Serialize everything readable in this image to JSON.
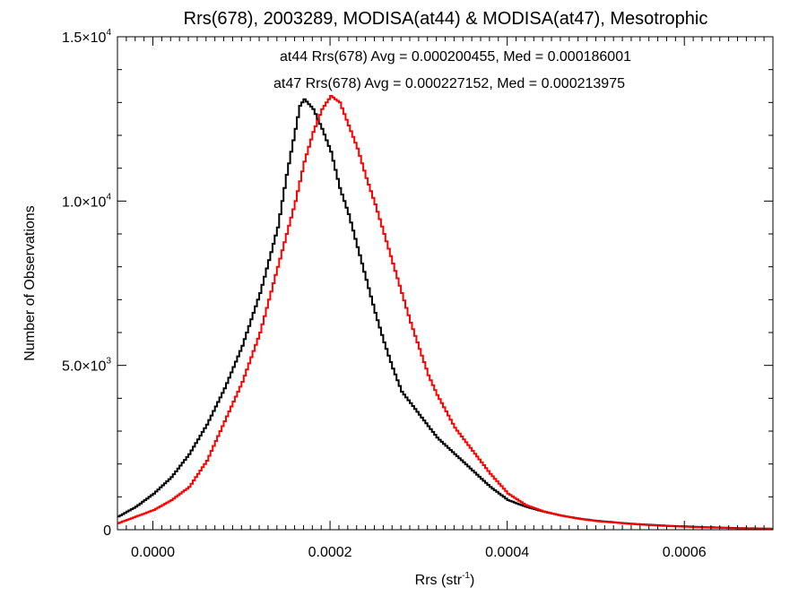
{
  "chart_data": {
    "type": "line",
    "title": "Rrs(678), 2003289, MODISA(at44) & MODISA(at47), Mesotrophic",
    "xlabel": "Rrs (str",
    "xlabel_sup": "-1",
    "xlabel_suffix": ")",
    "ylabel": "Number of Observations",
    "xlim": [
      -4e-05,
      0.0007
    ],
    "ylim": [
      0,
      15000
    ],
    "x_ticks": [
      {
        "value": 0.0,
        "label": "0.0000"
      },
      {
        "value": 0.0002,
        "label": "0.0002"
      },
      {
        "value": 0.0004,
        "label": "0.0004"
      },
      {
        "value": 0.0006,
        "label": "0.0006"
      }
    ],
    "y_ticks": [
      {
        "value": 0,
        "label": "0",
        "exp": ""
      },
      {
        "value": 5000,
        "label": "5.0×10",
        "exp": "3"
      },
      {
        "value": 10000,
        "label": "1.0×10",
        "exp": "4"
      },
      {
        "value": 15000,
        "label": "1.5×10",
        "exp": "4"
      }
    ],
    "annotations": [
      {
        "text": "at44 Rrs(678) Avg = 0.000200455, Med = 0.000186001",
        "color": "#000000"
      },
      {
        "text": "at47 Rrs(678) Avg = 0.000227152, Med = 0.000213975",
        "color": "#ff0000"
      }
    ],
    "grid": false,
    "series": [
      {
        "name": "at44",
        "color": "#000000",
        "points": [
          [
            -4e-05,
            400
          ],
          [
            -2e-05,
            700
          ],
          [
            0.0,
            1100
          ],
          [
            2e-05,
            1600
          ],
          [
            4e-05,
            2300
          ],
          [
            6e-05,
            3200
          ],
          [
            8e-05,
            4300
          ],
          [
            0.0001,
            5600
          ],
          [
            0.00012,
            7200
          ],
          [
            0.00014,
            9200
          ],
          [
            0.00015,
            10800
          ],
          [
            0.00016,
            12200
          ],
          [
            0.000165,
            12900
          ],
          [
            0.00017,
            13100
          ],
          [
            0.00018,
            12800
          ],
          [
            0.00019,
            12200
          ],
          [
            0.0002,
            11500
          ],
          [
            0.00021,
            10400
          ],
          [
            0.00022,
            9600
          ],
          [
            0.00023,
            8600
          ],
          [
            0.00024,
            7600
          ],
          [
            0.00025,
            6600
          ],
          [
            0.00026,
            5700
          ],
          [
            0.00027,
            4900
          ],
          [
            0.00028,
            4200
          ],
          [
            0.0003,
            3500
          ],
          [
            0.00032,
            2800
          ],
          [
            0.00034,
            2300
          ],
          [
            0.00036,
            1800
          ],
          [
            0.00038,
            1300
          ],
          [
            0.0004,
            900
          ],
          [
            0.00042,
            700
          ],
          [
            0.00044,
            550
          ],
          [
            0.00046,
            430
          ],
          [
            0.00048,
            340
          ],
          [
            0.0005,
            270
          ],
          [
            0.00054,
            180
          ],
          [
            0.00058,
            120
          ],
          [
            0.00062,
            80
          ],
          [
            0.00066,
            50
          ],
          [
            0.0007,
            30
          ]
        ]
      },
      {
        "name": "at47",
        "color": "#ff0000",
        "points": [
          [
            -4e-05,
            200
          ],
          [
            -2e-05,
            400
          ],
          [
            0.0,
            600
          ],
          [
            2e-05,
            900
          ],
          [
            4e-05,
            1300
          ],
          [
            6e-05,
            2100
          ],
          [
            8e-05,
            3300
          ],
          [
            0.0001,
            4500
          ],
          [
            0.00012,
            6000
          ],
          [
            0.00014,
            8000
          ],
          [
            0.00016,
            10000
          ],
          [
            0.00017,
            11200
          ],
          [
            0.00018,
            12100
          ],
          [
            0.00019,
            12800
          ],
          [
            0.0002,
            13200
          ],
          [
            0.00021,
            13000
          ],
          [
            0.00022,
            12300
          ],
          [
            0.00023,
            11600
          ],
          [
            0.00024,
            10700
          ],
          [
            0.00025,
            9900
          ],
          [
            0.00026,
            9000
          ],
          [
            0.00027,
            8100
          ],
          [
            0.00028,
            7200
          ],
          [
            0.00029,
            6300
          ],
          [
            0.0003,
            5500
          ],
          [
            0.00031,
            4700
          ],
          [
            0.00032,
            4100
          ],
          [
            0.00033,
            3600
          ],
          [
            0.00034,
            3100
          ],
          [
            0.00036,
            2400
          ],
          [
            0.00038,
            1700
          ],
          [
            0.0004,
            1100
          ],
          [
            0.00042,
            750
          ],
          [
            0.00044,
            560
          ],
          [
            0.00046,
            430
          ],
          [
            0.00048,
            330
          ],
          [
            0.0005,
            260
          ],
          [
            0.00054,
            170
          ],
          [
            0.00058,
            110
          ],
          [
            0.00062,
            70
          ],
          [
            0.00066,
            45
          ],
          [
            0.0007,
            25
          ]
        ]
      }
    ]
  }
}
